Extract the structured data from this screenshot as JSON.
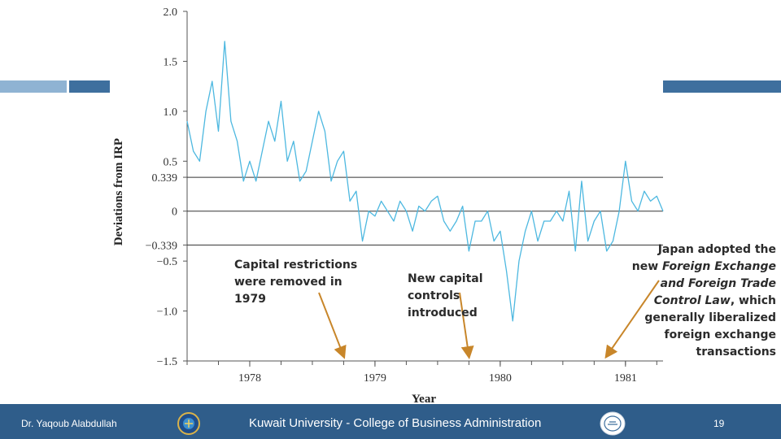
{
  "colors": {
    "line": "#4db8e0",
    "accent_bar": "#3e6f9e",
    "light_bar": "#8fb3d3",
    "footer_bg": "#2f5d8a",
    "arrow": "#c8862a",
    "ref_line": "#333333"
  },
  "chart_data": {
    "type": "line",
    "title": "",
    "xlabel": "Year",
    "ylabel": "Deviations from IRP",
    "ylim": [
      -1.5,
      2.0
    ],
    "xlim": [
      1977.5,
      1981.3
    ],
    "x_ticks": [
      1978,
      1979,
      1980,
      1981
    ],
    "x_tick_labels": [
      "1978",
      "1979",
      "1980",
      "1981"
    ],
    "y_ticks": [
      2.0,
      1.5,
      1.0,
      0.5,
      0.339,
      0,
      -0.339,
      -0.5,
      -1.0,
      -1.5
    ],
    "y_tick_labels": [
      "2.0",
      "1.5",
      "1.0",
      "0.5",
      "0.339",
      "0",
      "−0.339",
      "−0.5",
      "−1.0",
      "−1.5"
    ],
    "reference_lines": [
      0.339,
      0,
      -0.339
    ],
    "series": [
      {
        "name": "Deviations from IRP",
        "x": [
          1977.5,
          1977.55,
          1977.6,
          1977.65,
          1977.7,
          1977.75,
          1977.8,
          1977.85,
          1977.9,
          1977.95,
          1978.0,
          1978.05,
          1978.1,
          1978.15,
          1978.2,
          1978.25,
          1978.3,
          1978.35,
          1978.4,
          1978.45,
          1978.5,
          1978.55,
          1978.6,
          1978.65,
          1978.7,
          1978.75,
          1978.8,
          1978.85,
          1978.9,
          1978.95,
          1979.0,
          1979.05,
          1979.1,
          1979.15,
          1979.2,
          1979.25,
          1979.3,
          1979.35,
          1979.4,
          1979.45,
          1979.5,
          1979.55,
          1979.6,
          1979.65,
          1979.7,
          1979.75,
          1979.8,
          1979.85,
          1979.9,
          1979.95,
          1980.0,
          1980.05,
          1980.1,
          1980.15,
          1980.2,
          1980.25,
          1980.3,
          1980.35,
          1980.4,
          1980.45,
          1980.5,
          1980.55,
          1980.6,
          1980.65,
          1980.7,
          1980.75,
          1980.8,
          1980.85,
          1980.9,
          1980.95,
          1981.0,
          1981.05,
          1981.1,
          1981.15,
          1981.2,
          1981.25,
          1981.3
        ],
        "values": [
          0.9,
          0.6,
          0.5,
          1.0,
          1.3,
          0.8,
          1.7,
          0.9,
          0.7,
          0.3,
          0.5,
          0.3,
          0.6,
          0.9,
          0.7,
          1.1,
          0.5,
          0.7,
          0.3,
          0.4,
          0.7,
          1.0,
          0.8,
          0.3,
          0.5,
          0.6,
          0.1,
          0.2,
          -0.3,
          0.0,
          -0.05,
          0.1,
          0.0,
          -0.1,
          0.1,
          0.0,
          -0.2,
          0.05,
          0.0,
          0.1,
          0.15,
          -0.1,
          -0.2,
          -0.1,
          0.05,
          -0.4,
          -0.1,
          -0.1,
          0.0,
          -0.3,
          -0.2,
          -0.6,
          -1.1,
          -0.5,
          -0.2,
          0.0,
          -0.3,
          -0.1,
          -0.1,
          0.0,
          -0.1,
          0.2,
          -0.4,
          0.3,
          -0.3,
          -0.1,
          0.0,
          -0.4,
          -0.3,
          0.0,
          0.5,
          0.1,
          0.0,
          0.2,
          0.1,
          0.15,
          0.0
        ]
      }
    ],
    "annotations": [
      {
        "text": "Capital restrictions were removed in 1979",
        "x": 1978.75
      },
      {
        "text": "New capital controls introduced",
        "x": 1979.75
      },
      {
        "text": "Japan adopted the new Foreign Exchange and Foreign Trade Control Law, which generally liberalized foreign exchange transactions",
        "x": 1980.85
      }
    ]
  },
  "notes": {
    "left": [
      "Capital restrictions",
      "were removed in",
      "1979"
    ],
    "middle": [
      "New capital",
      "controls",
      "introduced"
    ],
    "right": [
      "Japan adopted the",
      "new ",
      "Foreign Exchange",
      "and Foreign Trade",
      "Control Law",
      ", which",
      "generally liberalized",
      "foreign exchange",
      "transactions"
    ]
  },
  "footer": {
    "author": "Dr. Yaqoub Alabdullah",
    "institution": "Kuwait University - College of Business Administration",
    "page": "19"
  }
}
